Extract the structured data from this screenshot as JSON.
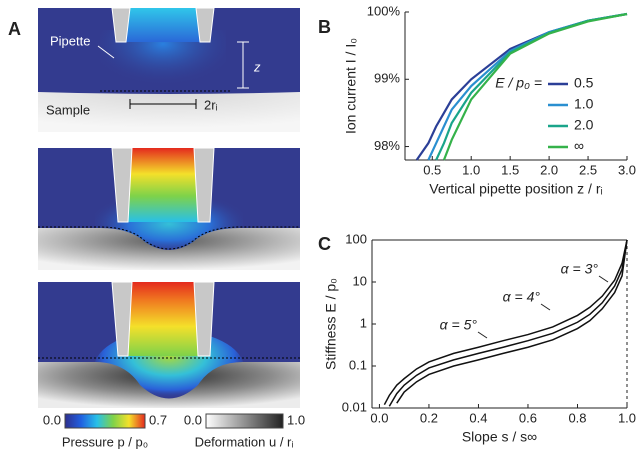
{
  "panel_a": {
    "label": "A",
    "pipette": "Pipette",
    "sample": "Sample",
    "z": "z",
    "width": "2rᵢ",
    "pressure_min": "0.0",
    "pressure_max": "0.7",
    "pressure_label": "Pressure p / p₀",
    "deformation_min": "0.0",
    "deformation_max": "1.0",
    "deformation_label": "Deformation u / rᵢ"
  },
  "chart_data": [
    {
      "type": "line",
      "panel_label": "B",
      "x_label": "Vertical pipette position z / rᵢ",
      "y_label": "Ion current I / I₀",
      "legend_title": "E / p₀ =",
      "x": [
        0.3,
        0.45,
        0.55,
        0.65,
        0.75,
        1.0,
        1.5,
        2.0,
        2.5,
        3.0
      ],
      "series": [
        {
          "name": "0.5",
          "color": "#2b3f97",
          "values": [
            97.8,
            98.05,
            98.3,
            98.5,
            98.7,
            99.0,
            99.45,
            99.7,
            99.87,
            99.97
          ]
        },
        {
          "name": "1.0",
          "color": "#2a8fd0",
          "values": [
            null,
            97.8,
            98.05,
            98.3,
            98.55,
            98.9,
            99.42,
            99.7,
            99.87,
            99.97
          ]
        },
        {
          "name": "2.0",
          "color": "#1aa58a",
          "values": [
            null,
            null,
            97.8,
            98.05,
            98.35,
            98.8,
            99.4,
            99.69,
            99.87,
            99.97
          ]
        },
        {
          "name": "∞",
          "color": "#35b24a",
          "values": [
            null,
            null,
            null,
            97.8,
            98.1,
            98.7,
            99.38,
            99.68,
            99.86,
            99.97
          ]
        }
      ],
      "xlim": [
        0.15,
        3.0
      ],
      "ylim": [
        97.8,
        100.0
      ],
      "xticks": [
        0.5,
        {
          "value": 1,
          "label": "1.0"
        },
        1.5,
        {
          "value": 2,
          "label": "2.0"
        },
        2.5,
        {
          "value": 3,
          "label": "3.0"
        }
      ],
      "yticks": [
        {
          "value": 98,
          "label": "98%"
        },
        {
          "value": 99,
          "label": "99%"
        },
        {
          "value": 100,
          "label": "100%"
        }
      ]
    },
    {
      "type": "line",
      "panel_label": "C",
      "x_label": "Slope s / s∞",
      "y_label": "Stiffness E / p₀",
      "log_y": true,
      "x": [
        0.02,
        0.04,
        0.07,
        0.1,
        0.15,
        0.2,
        0.3,
        0.4,
        0.5,
        0.6,
        0.7,
        0.8,
        0.85,
        0.9,
        0.95,
        0.98,
        1.0
      ],
      "series": [
        {
          "name": "α = 3°",
          "color": "#111111",
          "values": [
            0.012,
            0.02,
            0.035,
            0.05,
            0.085,
            0.125,
            0.2,
            0.28,
            0.4,
            0.56,
            0.85,
            1.6,
            2.5,
            4.6,
            11,
            28,
            100
          ]
        },
        {
          "name": "α = 4°",
          "color": "#111111",
          "values": [
            null,
            0.011,
            0.022,
            0.035,
            0.06,
            0.09,
            0.14,
            0.2,
            0.28,
            0.4,
            0.6,
            1.1,
            1.7,
            3.2,
            8,
            20,
            100
          ]
        },
        {
          "name": "α = 5°",
          "color": "#111111",
          "values": [
            null,
            null,
            0.013,
            0.024,
            0.042,
            0.063,
            0.1,
            0.14,
            0.2,
            0.28,
            0.42,
            0.78,
            1.2,
            2.3,
            5.6,
            14,
            100
          ]
        }
      ],
      "xlim": [
        -0.03,
        1.0
      ],
      "ylim": [
        0.01,
        100
      ],
      "xticks": [
        {
          "value": 0,
          "label": "0.0"
        },
        0.2,
        0.4,
        0.6,
        0.8,
        {
          "value": 1,
          "label": "1.0"
        }
      ],
      "yticks": [
        0.01,
        0.1,
        1,
        10,
        100
      ]
    }
  ]
}
